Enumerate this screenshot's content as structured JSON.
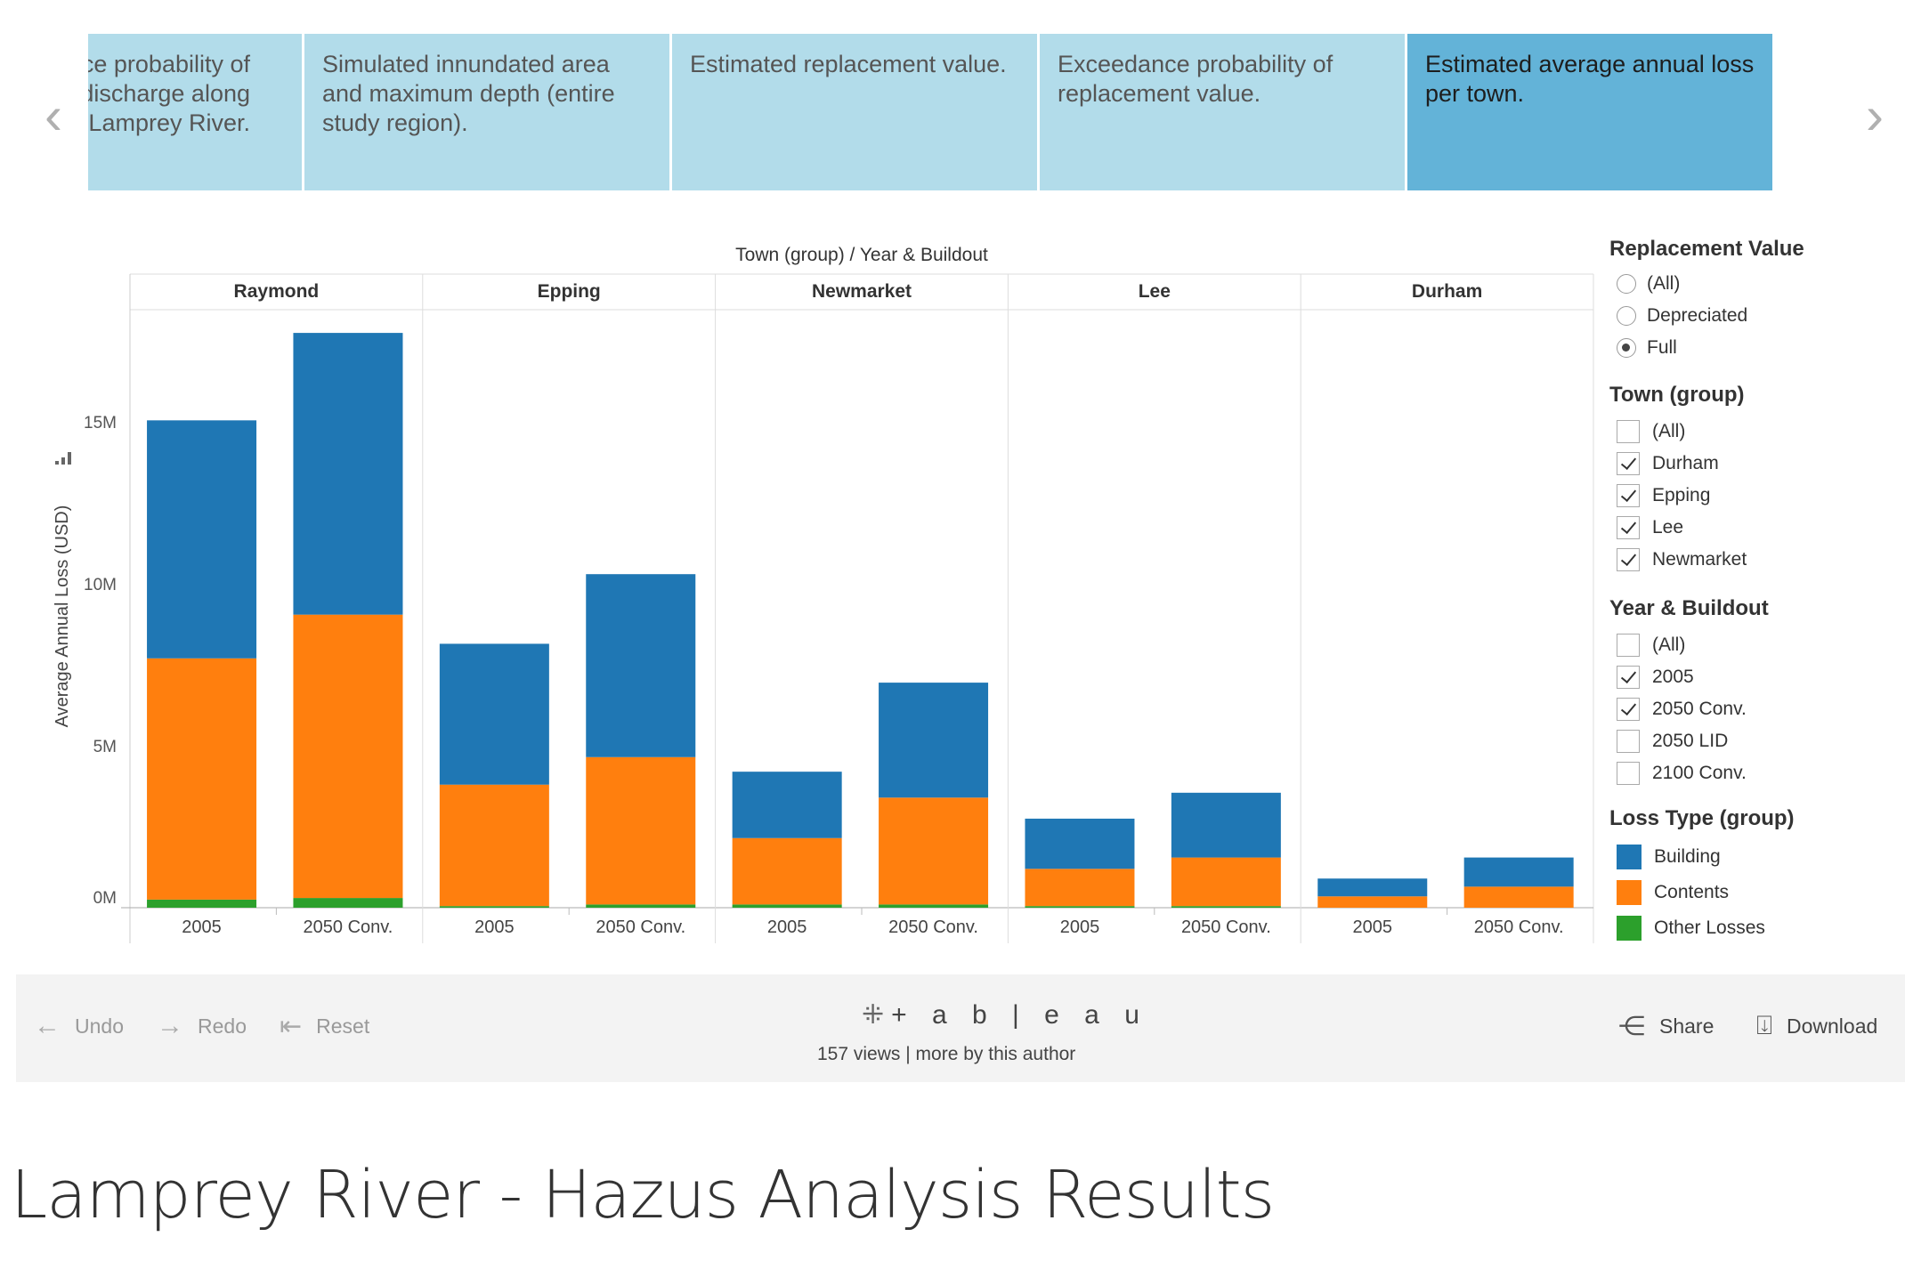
{
  "page_title": "Lamprey River - Hazus Analysis Results",
  "story_points": [
    {
      "label": "dance probability of um discharge along em of Lamprey River.",
      "lines": [
        "dance probability of",
        "um discharge along",
        "em of Lamprey River."
      ],
      "active": false
    },
    {
      "label": "Simulated innundated area and maximum depth (entire study region).",
      "lines": [
        "Simulated innundated area",
        "and maximum depth (entire",
        "study region)."
      ],
      "active": false
    },
    {
      "label": "Estimated replacement value.",
      "lines": [
        "Estimated replacement value."
      ],
      "active": false
    },
    {
      "label": "Exceedance probability of replacement value.",
      "lines": [
        "Exceedance probability of",
        "replacement value."
      ],
      "active": false
    },
    {
      "label": "Estimated average annual loss per town.",
      "lines": [
        "Estimated average annual loss",
        "per town."
      ],
      "active": true
    }
  ],
  "nav": {
    "prev_icon": "chevron-left-icon",
    "next_icon": "chevron-right-icon"
  },
  "chart_data": {
    "type": "bar",
    "stacked": true,
    "header": "Town (group)  /  Year & Buildout",
    "ylabel": "Average Annual Loss (USD)",
    "y_ticks": [
      "0M",
      "5M",
      "10M",
      "15M"
    ],
    "ylim": [
      0,
      18000000
    ],
    "groups": [
      "Raymond",
      "Epping",
      "Newmarket",
      "Lee",
      "Durham"
    ],
    "categories": [
      "2005",
      "2050 Conv."
    ],
    "series": [
      {
        "name": "Other Losses",
        "color": "#2ca02c",
        "values": [
          [
            250000,
            300000
          ],
          [
            50000,
            100000
          ],
          [
            100000,
            100000
          ],
          [
            50000,
            50000
          ],
          [
            0,
            0
          ]
        ]
      },
      {
        "name": "Contents",
        "color": "#ff7f0e",
        "values": [
          [
            7450000,
            8750000
          ],
          [
            3750000,
            4550000
          ],
          [
            2050000,
            3300000
          ],
          [
            1150000,
            1500000
          ],
          [
            350000,
            650000
          ]
        ]
      },
      {
        "name": "Building",
        "color": "#1f77b4",
        "values": [
          [
            7350000,
            8700000
          ],
          [
            4350000,
            5650000
          ],
          [
            2050000,
            3550000
          ],
          [
            1550000,
            2000000
          ],
          [
            550000,
            900000
          ]
        ]
      }
    ],
    "grid": false,
    "legend": "right"
  },
  "filters": {
    "replacement_value": {
      "title": "Replacement Value",
      "options": [
        "(All)",
        "Depreciated",
        "Full"
      ],
      "selected": "Full"
    },
    "town_group": {
      "title": "Town (group)",
      "options": [
        {
          "label": "(All)",
          "checked": false
        },
        {
          "label": "Durham",
          "checked": true
        },
        {
          "label": "Epping",
          "checked": true
        },
        {
          "label": "Lee",
          "checked": true
        },
        {
          "label": "Newmarket",
          "checked": true
        }
      ]
    },
    "year_buildout": {
      "title": "Year & Buildout",
      "options": [
        {
          "label": "(All)",
          "checked": false
        },
        {
          "label": "2005",
          "checked": true
        },
        {
          "label": "2050 Conv.",
          "checked": true
        },
        {
          "label": "2050 LID",
          "checked": false
        },
        {
          "label": "2100 Conv.",
          "checked": false
        }
      ]
    },
    "loss_type": {
      "title": "Loss Type (group)",
      "items": [
        {
          "label": "Building",
          "color": "#1f77b4"
        },
        {
          "label": "Contents",
          "color": "#ff7f0e"
        },
        {
          "label": "Other Losses",
          "color": "#2ca02c"
        }
      ]
    }
  },
  "toolbar": {
    "undo": "Undo",
    "redo": "Redo",
    "reset": "Reset",
    "brand": "+ a b | e a u",
    "views": "157 views",
    "separator": "|",
    "more": "more by this author",
    "share": "Share",
    "download": "Download"
  }
}
